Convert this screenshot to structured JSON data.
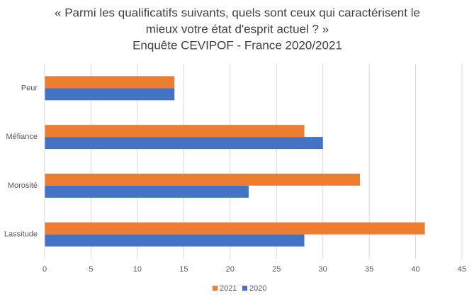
{
  "chart_data": {
    "type": "hbar",
    "title": [
      "« Parmi les qualificatifs suivants, quels sont ceux qui caractérisent le",
      "mieux votre état d'esprit actuel ? »"
    ],
    "subtitle": "Enquête CEVIPOF - France 2020/2021",
    "categories": [
      "Peur",
      "Méfiance",
      "Morosité",
      "Lassitude"
    ],
    "series": [
      {
        "name": "2021",
        "color": "#ed7d31",
        "values": [
          14,
          28,
          34,
          41
        ]
      },
      {
        "name": "2020",
        "color": "#4472c4",
        "values": [
          14,
          30,
          22,
          28
        ]
      }
    ],
    "xlim": [
      0,
      45
    ],
    "xticks": [
      0,
      5,
      10,
      15,
      20,
      25,
      30,
      35,
      40,
      45
    ],
    "grid": true,
    "legend": "bottom"
  }
}
